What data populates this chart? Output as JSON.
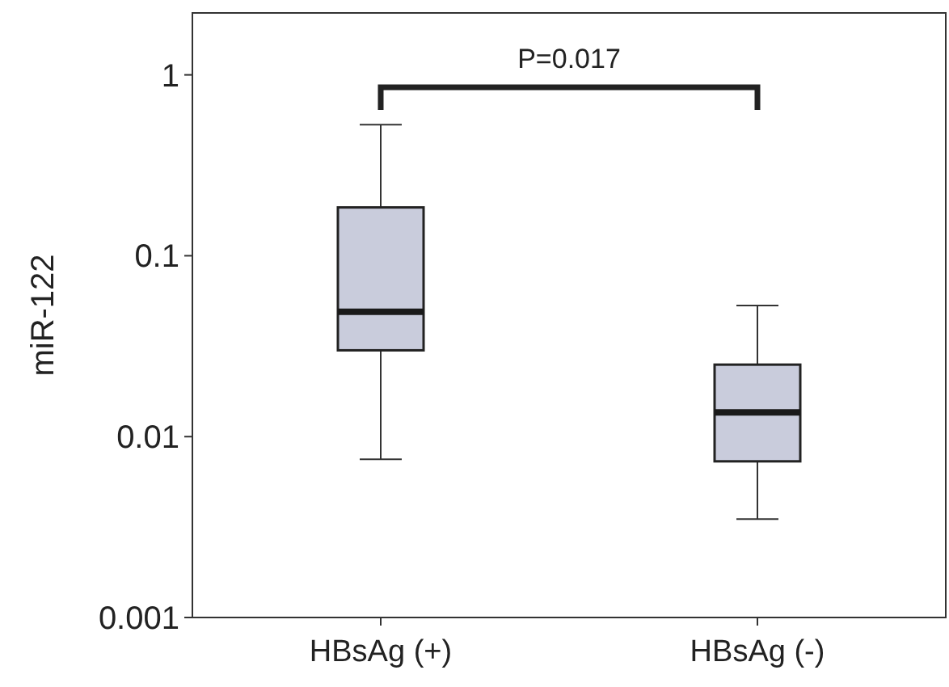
{
  "chart_data": {
    "type": "box",
    "ylabel": "miR-122",
    "categories": [
      "HBsAg (+)",
      "HBsAg (-)"
    ],
    "boxes": [
      {
        "low": 0.0075,
        "q1": 0.03,
        "median": 0.049,
        "q3": 0.185,
        "high": 0.53
      },
      {
        "low": 0.0035,
        "q1": 0.0073,
        "median": 0.0136,
        "q3": 0.025,
        "high": 0.053
      }
    ],
    "color": "#c9ccdc",
    "log": "y",
    "ylim": [
      0.001,
      2.2
    ],
    "yticks": [
      {
        "value": 0.001,
        "label": "0.001"
      },
      {
        "value": 0.01,
        "label": "0.01"
      },
      {
        "value": 0.1,
        "label": "0.1"
      },
      {
        "value": 1,
        "label": "1"
      }
    ],
    "grid": false,
    "annotations": [
      "P=0.017"
    ]
  }
}
